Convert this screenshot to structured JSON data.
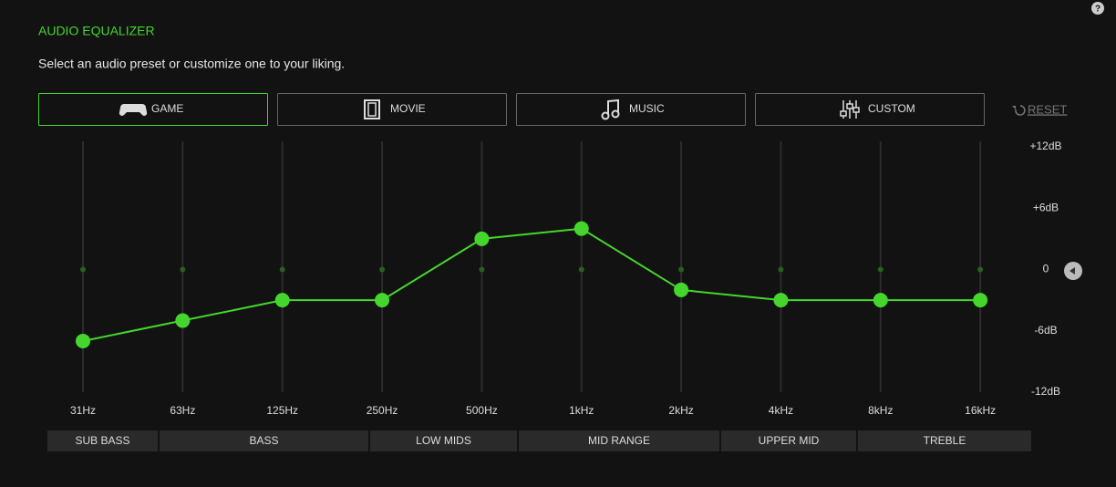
{
  "help": "?",
  "title": "AUDIO EQUALIZER",
  "subtitle": "Select an audio preset or customize one to your liking.",
  "presets": [
    "GAME",
    "MOVIE",
    "MUSIC",
    "CUSTOM"
  ],
  "selected_preset": 0,
  "reset": "RESET",
  "chart_data": {
    "type": "line",
    "categories": [
      "31Hz",
      "63Hz",
      "125Hz",
      "250Hz",
      "500Hz",
      "1kHz",
      "2kHz",
      "4kHz",
      "8kHz",
      "16kHz"
    ],
    "values": [
      -7,
      -5,
      -3,
      -3,
      3,
      4,
      -2,
      -3,
      -3,
      -3
    ],
    "color": "#44d62c",
    "ylim": [
      -12,
      12
    ],
    "yticks": [
      {
        "value": 12,
        "label": "+12dB"
      },
      {
        "value": 6,
        "label": "+6dB"
      },
      0,
      {
        "value": -6,
        "label": "-6dB"
      },
      {
        "value": -12,
        "label": "-12dB"
      }
    ],
    "bands": [
      "SUB BASS",
      "BASS",
      "LOW MIDS",
      "MID RANGE",
      "UPPER MID",
      "TREBLE"
    ]
  }
}
